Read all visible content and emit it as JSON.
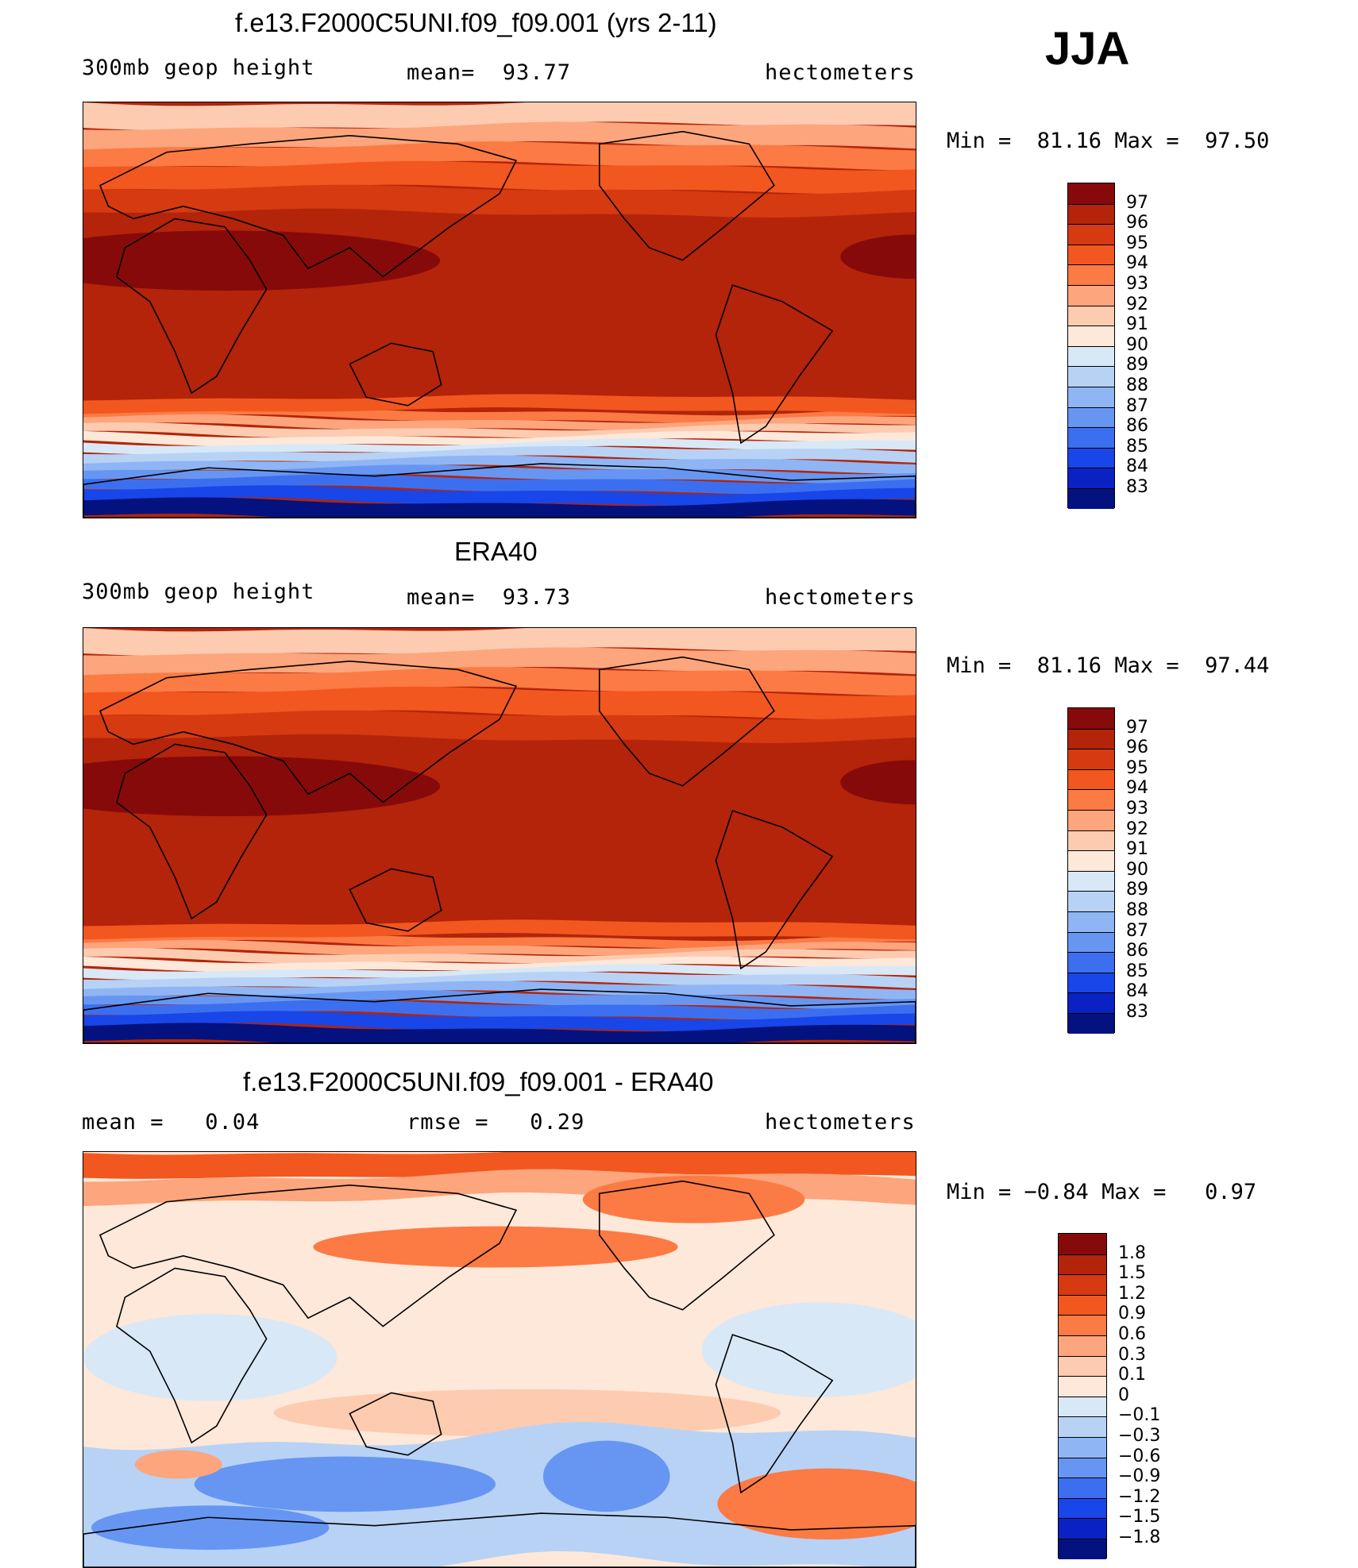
{
  "season": "JJA",
  "panels": [
    {
      "title": "f.e13.F2000C5UNI.f09_f09.001 (yrs 2-11)",
      "left_label": "300mb geop height",
      "center_label": "mean=  93.77",
      "right_label": "hectometers",
      "minmax": "Min =  81.16 Max =  97.50",
      "kind": "abs",
      "colorbar": {
        "labels": [
          "97",
          "96",
          "95",
          "94",
          "93",
          "92",
          "91",
          "90",
          "89",
          "88",
          "87",
          "86",
          "85",
          "84",
          "83"
        ],
        "colors": [
          "#870a0a",
          "#b3240a",
          "#d63a10",
          "#f2571f",
          "#fc7a44",
          "#fda57c",
          "#fdcbb0",
          "#fde8d9",
          "#d8e8f7",
          "#b7d2f5",
          "#8fb5f5",
          "#6796f2",
          "#3c6ff0",
          "#1846e8",
          "#0a22c4",
          "#03127f"
        ]
      }
    },
    {
      "title": "ERA40",
      "left_label": "300mb geop height",
      "center_label": "mean=  93.73",
      "right_label": "hectometers",
      "minmax": "Min =  81.16 Max =  97.44",
      "kind": "abs",
      "colorbar": {
        "labels": [
          "97",
          "96",
          "95",
          "94",
          "93",
          "92",
          "91",
          "90",
          "89",
          "88",
          "87",
          "86",
          "85",
          "84",
          "83"
        ],
        "colors": [
          "#870a0a",
          "#b3240a",
          "#d63a10",
          "#f2571f",
          "#fc7a44",
          "#fda57c",
          "#fdcbb0",
          "#fde8d9",
          "#d8e8f7",
          "#b7d2f5",
          "#8fb5f5",
          "#6796f2",
          "#3c6ff0",
          "#1846e8",
          "#0a22c4",
          "#03127f"
        ]
      }
    },
    {
      "title": "f.e13.F2000C5UNI.f09_f09.001 - ERA40",
      "left_label": "mean =   0.04",
      "center_label": "rmse =   0.29",
      "right_label": "hectometers",
      "minmax": "Min = −0.84 Max =   0.97",
      "kind": "diff",
      "colorbar": {
        "labels": [
          "1.8",
          "1.5",
          "1.2",
          "0.9",
          "0.6",
          "0.3",
          "0.1",
          "0",
          "−0.1",
          "−0.3",
          "−0.6",
          "−0.9",
          "−1.2",
          "−1.5",
          "−1.8"
        ],
        "colors": [
          "#870a0a",
          "#b3240a",
          "#d63a10",
          "#f2571f",
          "#fc7a44",
          "#fda57c",
          "#fdcbb0",
          "#fde8d9",
          "#d8e8f7",
          "#b7d2f5",
          "#8fb5f5",
          "#6796f2",
          "#3c6ff0",
          "#1846e8",
          "#0a22c4",
          "#03127f"
        ]
      }
    }
  ]
}
